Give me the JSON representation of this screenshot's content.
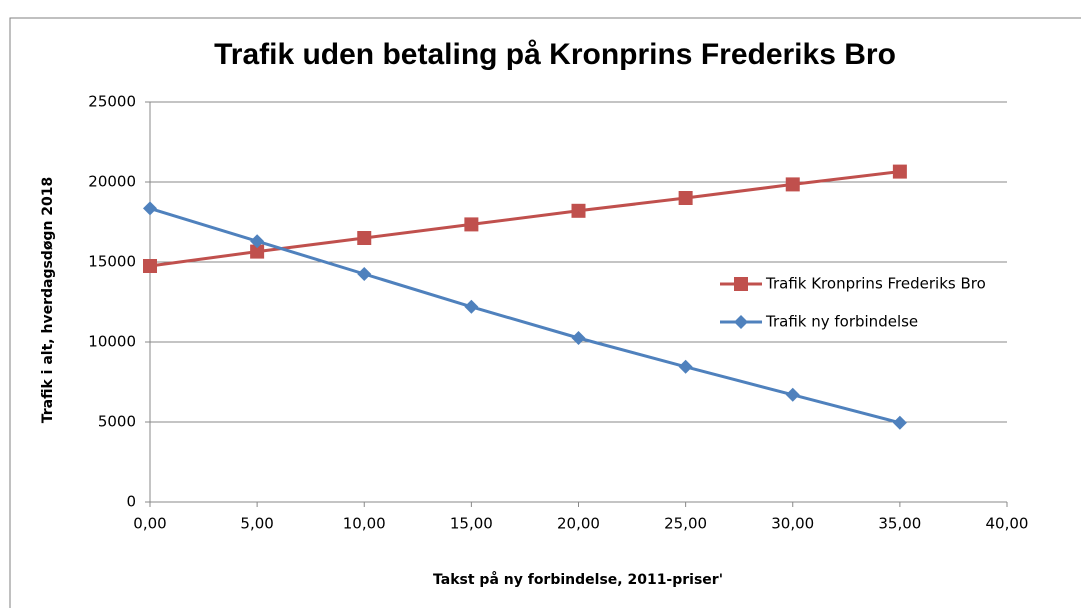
{
  "chart_data": {
    "type": "line",
    "title": "Trafik uden betaling på Kronprins Frederiks Bro",
    "x_label": "Takst på ny forbindelse, 2011-priser'",
    "y_label": "Trafik i alt, hverdagsdøgn 2018",
    "x": [
      0,
      5,
      10,
      15,
      20,
      25,
      30,
      35
    ],
    "series": [
      {
        "name": "Trafik Kronprins Frederiks Bro",
        "color": "#c0504d",
        "marker": "square",
        "values": [
          14750,
          15650,
          16500,
          17350,
          18200,
          19000,
          19850,
          20650
        ]
      },
      {
        "name": "Trafik ny forbindelse",
        "color": "#4f81bd",
        "marker": "diamond",
        "values": [
          18350,
          16300,
          14250,
          12200,
          10250,
          8450,
          6700,
          4950
        ]
      }
    ],
    "xlim": [
      0,
      40
    ],
    "xticks": [
      {
        "value": 0,
        "label": "0,00"
      },
      {
        "value": 5,
        "label": "5,00"
      },
      {
        "value": 10,
        "label": "10,00"
      },
      {
        "value": 15,
        "label": "15,00"
      },
      {
        "value": 20,
        "label": "20,00"
      },
      {
        "value": 25,
        "label": "25,00"
      },
      {
        "value": 30,
        "label": "30,00"
      },
      {
        "value": 35,
        "label": "35,00"
      },
      {
        "value": 40,
        "label": "40,00"
      }
    ],
    "ylim": [
      0,
      25000
    ],
    "yticks": [
      0,
      5000,
      10000,
      15000,
      20000,
      25000
    ],
    "grid": true,
    "legend": "right"
  }
}
